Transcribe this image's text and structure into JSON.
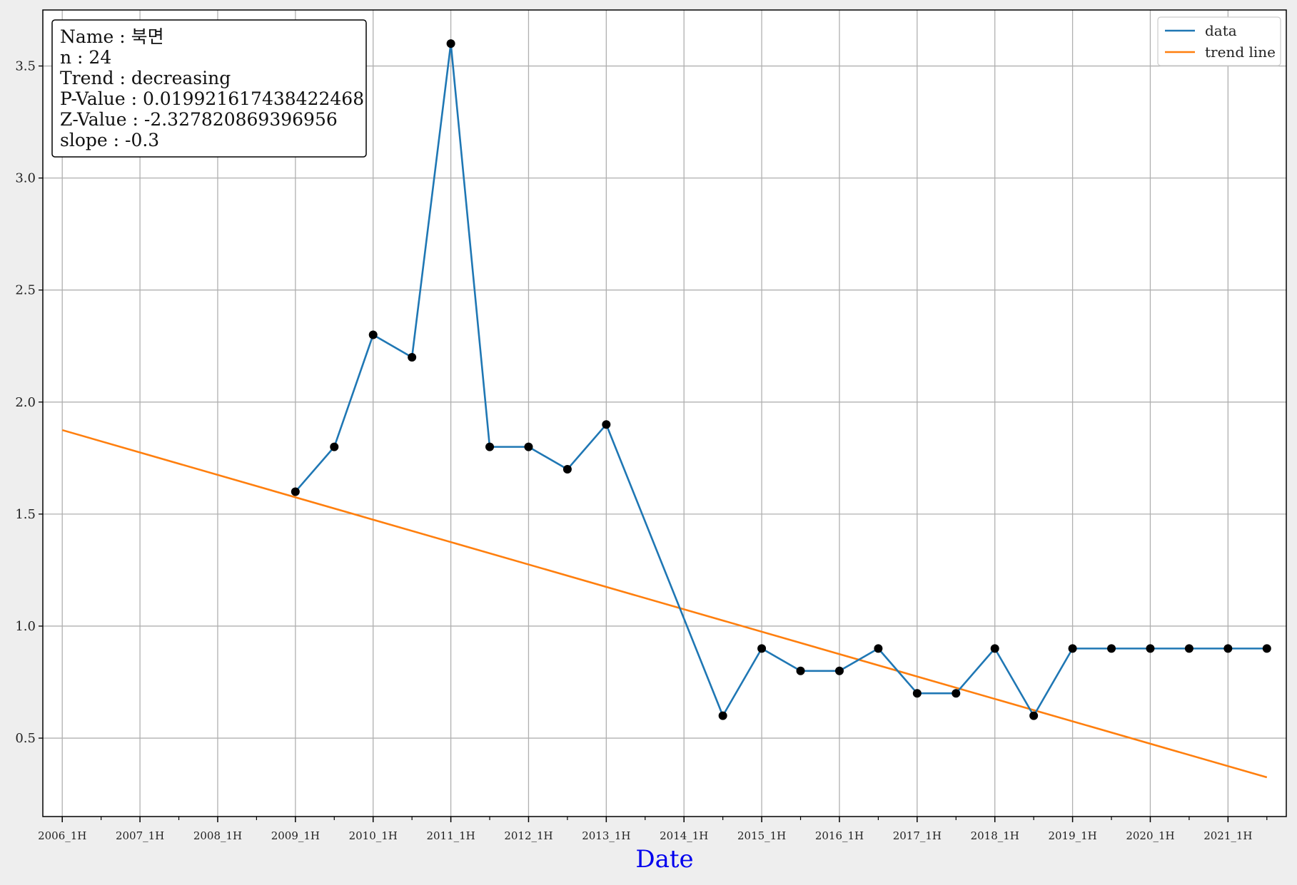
{
  "chart_data": {
    "type": "line",
    "xlabel": "Date",
    "ylabel": "",
    "title": "",
    "xlim": [
      -0.5,
      31.5
    ],
    "ylim": [
      0.15,
      3.75
    ],
    "grid": true,
    "legend_placement": "top-right",
    "x_tick_labels": [
      "2006_1H",
      "2007_1H",
      "2008_1H",
      "2009_1H",
      "2010_1H",
      "2011_1H",
      "2012_1H",
      "2013_1H",
      "2014_1H",
      "2015_1H",
      "2016_1H",
      "2017_1H",
      "2018_1H",
      "2019_1H",
      "2020_1H",
      "2021_1H"
    ],
    "y_ticks": [
      0.5,
      1.0,
      1.5,
      2.0,
      2.5,
      3.0,
      3.5
    ],
    "y_tick_labels": [
      "0.5",
      "1.0",
      "1.5",
      "2.0",
      "2.5",
      "3.0",
      "3.5"
    ],
    "series": [
      {
        "name": "data",
        "color": "#1f77b4",
        "x": [
          "2009_1H",
          "2009_2H",
          "2010_1H",
          "2010_2H",
          "2011_1H",
          "2011_2H",
          "2012_1H",
          "2012_2H",
          "2013_1H",
          "2014_2H",
          "2015_1H",
          "2015_2H",
          "2016_1H",
          "2016_2H",
          "2017_1H",
          "2017_2H",
          "2018_1H",
          "2018_2H",
          "2019_1H",
          "2019_2H",
          "2020_1H",
          "2020_2H",
          "2021_1H",
          "2021_2H"
        ],
        "values": [
          1.6,
          1.8,
          2.3,
          2.2,
          3.6,
          1.8,
          1.8,
          1.7,
          1.9,
          0.6,
          0.9,
          0.8,
          0.8,
          0.9,
          0.7,
          0.7,
          0.9,
          0.6,
          0.9,
          0.9,
          0.9,
          0.9,
          0.9,
          0.9
        ]
      },
      {
        "name": "trend line",
        "color": "#ff7f0e",
        "x": [
          "2006_1H",
          "2021_2H"
        ],
        "values": [
          1.875,
          0.325
        ]
      }
    ],
    "marker_color": "#000000",
    "xlabel_color": "#0000ee",
    "info_box": [
      "Name : 북면",
      "n : 24",
      "Trend : decreasing",
      "P-Value : 0.019921617438422468",
      "Z-Value : -2.327820869396956",
      "slope : -0.3"
    ]
  }
}
